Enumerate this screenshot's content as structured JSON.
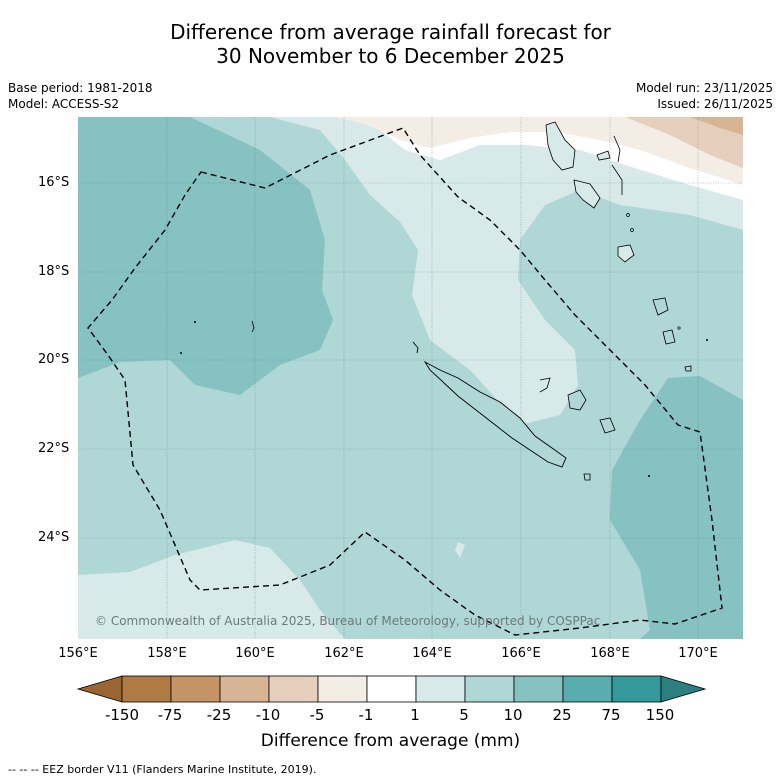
{
  "title": {
    "line1": "Difference from average rainfall forecast for",
    "line2": "30 November to 6 December 2025"
  },
  "meta": {
    "base_period": "Base period: 1981-2018",
    "model": "Model: ACCESS-S2",
    "model_run": "Model run: 23/11/2025",
    "issued": "Issued: 26/11/2025"
  },
  "map": {
    "lat_labels": [
      "16°S",
      "18°S",
      "20°S",
      "22°S",
      "24°S"
    ],
    "lon_labels": [
      "156°E",
      "158°E",
      "160°E",
      "162°E",
      "164°E",
      "166°E",
      "168°E",
      "170°E"
    ],
    "copyright": "© Commonwealth of Australia 2025, Bureau of Meteorology, supported by COSPPac"
  },
  "colorbar": {
    "labels": [
      "-150",
      "-75",
      "-25",
      "-10",
      "-5",
      "-1",
      "1",
      "5",
      "10",
      "25",
      "75",
      "150"
    ],
    "colors": [
      "#9a6530",
      "#b07a44",
      "#c49466",
      "#d6b494",
      "#e6d0bd",
      "#f3ede5",
      "#ffffff",
      "#d7eae9",
      "#afd7d6",
      "#86c2c1",
      "#58aeae",
      "#33999a",
      "#2b7f80"
    ],
    "title": "Difference from average (mm)"
  },
  "legend": {
    "eez": "--  --  -- EEZ border V11 (Flanders Marine Institute, 2019)."
  }
}
